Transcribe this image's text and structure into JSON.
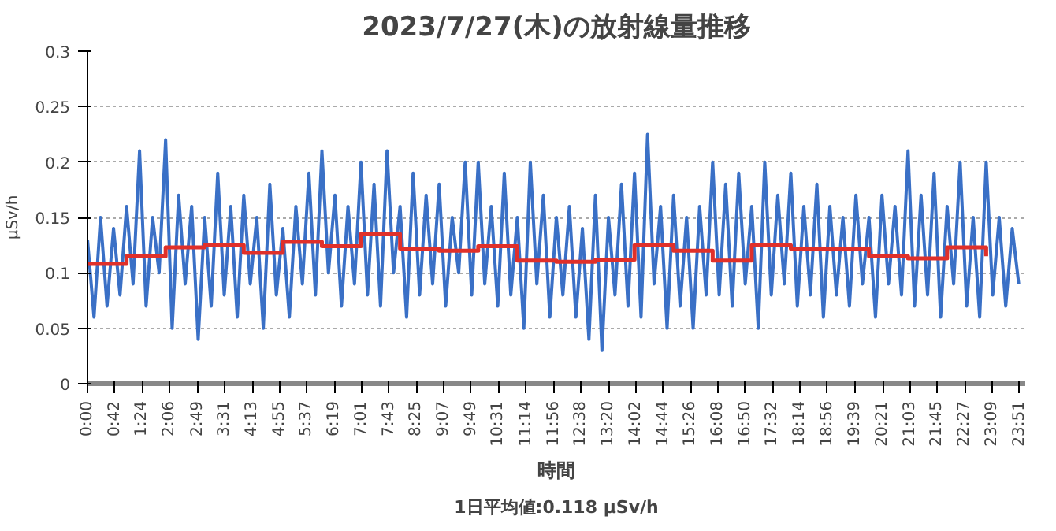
{
  "chart_data": {
    "type": "line",
    "title": "2023/7/27(木)の放射線量推移",
    "xlabel": "時間",
    "ylabel": "μSv/h",
    "annotations": [
      "1日平均値:0.118 μSv/h"
    ],
    "xlim": [
      0,
      24
    ],
    "ylim": [
      0,
      0.3
    ],
    "yticks": [
      0,
      0.05,
      {
        "value": 0.1,
        "label": "0.1"
      },
      0.15,
      {
        "value": 0.2,
        "label": "0.2"
      },
      0.25,
      {
        "value": 0.3,
        "label": "0.3"
      }
    ],
    "xticks": [
      {
        "value": 0,
        "label": "0:00"
      },
      {
        "value": 0.7,
        "label": "0:42"
      },
      {
        "value": 1.4,
        "label": "1:24"
      },
      {
        "value": 2.1,
        "label": "2:06"
      },
      {
        "value": 2.8167,
        "label": "2:49"
      },
      {
        "value": 3.5167,
        "label": "3:31"
      },
      {
        "value": 4.2167,
        "label": "4:13"
      },
      {
        "value": 4.9167,
        "label": "4:55"
      },
      {
        "value": 5.6167,
        "label": "5:37"
      },
      {
        "value": 6.3167,
        "label": "6:19"
      },
      {
        "value": 7.0167,
        "label": "7:01"
      },
      {
        "value": 7.7167,
        "label": "7:43"
      },
      {
        "value": 8.4167,
        "label": "8:25"
      },
      {
        "value": 9.1167,
        "label": "9:07"
      },
      {
        "value": 9.8167,
        "label": "9:49"
      },
      {
        "value": 10.5167,
        "label": "10:31"
      },
      {
        "value": 11.2333,
        "label": "11:14"
      },
      {
        "value": 11.9333,
        "label": "11:56"
      },
      {
        "value": 12.6333,
        "label": "12:38"
      },
      {
        "value": 13.3333,
        "label": "13:20"
      },
      {
        "value": 14.0333,
        "label": "14:02"
      },
      {
        "value": 14.7333,
        "label": "14:44"
      },
      {
        "value": 15.4333,
        "label": "15:26"
      },
      {
        "value": 16.1333,
        "label": "16:08"
      },
      {
        "value": 16.8333,
        "label": "16:50"
      },
      {
        "value": 17.5333,
        "label": "17:32"
      },
      {
        "value": 18.2333,
        "label": "18:14"
      },
      {
        "value": 18.9333,
        "label": "18:56"
      },
      {
        "value": 19.65,
        "label": "19:39"
      },
      {
        "value": 20.35,
        "label": "20:21"
      },
      {
        "value": 21.05,
        "label": "21:03"
      },
      {
        "value": 21.75,
        "label": "21:45"
      },
      {
        "value": 22.45,
        "label": "22:27"
      },
      {
        "value": 23.15,
        "label": "23:09"
      },
      {
        "value": 23.85,
        "label": "23:51"
      }
    ],
    "grid": "y",
    "series": [
      {
        "color": "#3a70c6",
        "x": [
          0,
          0.1667,
          0.3333,
          0.5,
          0.6667,
          0.8333,
          1,
          1.1667,
          1.3333,
          1.5,
          1.6667,
          1.8333,
          2,
          2.1667,
          2.3333,
          2.5,
          2.6667,
          2.8333,
          3,
          3.1667,
          3.3333,
          3.5,
          3.6667,
          3.8333,
          4,
          4.1667,
          4.3333,
          4.5,
          4.6667,
          4.8333,
          5,
          5.1667,
          5.3333,
          5.5,
          5.6667,
          5.8333,
          6,
          6.1667,
          6.3333,
          6.5,
          6.6667,
          6.8333,
          7,
          7.1667,
          7.3333,
          7.5,
          7.6667,
          7.8333,
          8,
          8.1667,
          8.3333,
          8.5,
          8.6667,
          8.8333,
          9,
          9.1667,
          9.3333,
          9.5,
          9.6667,
          9.8333,
          10,
          10.1667,
          10.3333,
          10.5,
          10.6667,
          10.8333,
          11,
          11.1667,
          11.3333,
          11.5,
          11.6667,
          11.8333,
          12,
          12.1667,
          12.3333,
          12.5,
          12.6667,
          12.8333,
          13,
          13.1667,
          13.3333,
          13.5,
          13.6667,
          13.8333,
          14,
          14.1667,
          14.3333,
          14.5,
          14.6667,
          14.8333,
          15,
          15.1667,
          15.3333,
          15.5,
          15.6667,
          15.8333,
          16,
          16.1667,
          16.3333,
          16.5,
          16.6667,
          16.8333,
          17,
          17.1667,
          17.3333,
          17.5,
          17.6667,
          17.8333,
          18,
          18.1667,
          18.3333,
          18.5,
          18.6667,
          18.8333,
          19,
          19.1667,
          19.3333,
          19.5,
          19.6667,
          19.8333,
          20,
          20.1667,
          20.3333,
          20.5,
          20.6667,
          20.8333,
          21,
          21.1667,
          21.3333,
          21.5,
          21.6667,
          21.8333,
          22,
          22.1667,
          22.3333,
          22.5,
          22.6667,
          22.8333,
          23,
          23.1667,
          23.3333,
          23.5,
          23.6667,
          23.8333
        ],
        "values": [
          0.13,
          0.06,
          0.15,
          0.07,
          0.14,
          0.08,
          0.16,
          0.09,
          0.21,
          0.07,
          0.15,
          0.1,
          0.22,
          0.05,
          0.17,
          0.09,
          0.16,
          0.04,
          0.15,
          0.07,
          0.19,
          0.08,
          0.16,
          0.06,
          0.17,
          0.09,
          0.15,
          0.05,
          0.18,
          0.08,
          0.14,
          0.06,
          0.16,
          0.09,
          0.19,
          0.08,
          0.21,
          0.1,
          0.17,
          0.07,
          0.16,
          0.09,
          0.2,
          0.08,
          0.18,
          0.07,
          0.21,
          0.1,
          0.16,
          0.06,
          0.19,
          0.08,
          0.17,
          0.09,
          0.18,
          0.07,
          0.15,
          0.1,
          0.2,
          0.08,
          0.2,
          0.09,
          0.16,
          0.07,
          0.19,
          0.08,
          0.15,
          0.05,
          0.2,
          0.09,
          0.17,
          0.06,
          0.15,
          0.08,
          0.16,
          0.06,
          0.14,
          0.04,
          0.17,
          0.03,
          0.15,
          0.08,
          0.18,
          0.07,
          0.19,
          0.06,
          0.225,
          0.09,
          0.16,
          0.05,
          0.17,
          0.07,
          0.15,
          0.05,
          0.16,
          0.08,
          0.2,
          0.08,
          0.18,
          0.07,
          0.19,
          0.09,
          0.16,
          0.05,
          0.2,
          0.08,
          0.17,
          0.09,
          0.19,
          0.07,
          0.16,
          0.08,
          0.18,
          0.06,
          0.16,
          0.08,
          0.15,
          0.07,
          0.17,
          0.09,
          0.15,
          0.06,
          0.17,
          0.09,
          0.16,
          0.08,
          0.21,
          0.07,
          0.17,
          0.08,
          0.19,
          0.06,
          0.16,
          0.09,
          0.2,
          0.07,
          0.15,
          0.06,
          0.2,
          0.08,
          0.15,
          0.07,
          0.14,
          0.09
        ]
      },
      {
        "type": "step",
        "color": "#e0302a",
        "x": [
          0,
          1,
          2,
          3,
          4,
          5,
          6,
          7,
          8,
          9,
          10,
          11,
          12,
          13,
          14,
          15,
          16,
          17,
          18,
          19,
          20,
          21,
          22,
          23
        ],
        "values": [
          0.108,
          0.115,
          0.123,
          0.125,
          0.118,
          0.128,
          0.124,
          0.135,
          0.122,
          0.12,
          0.124,
          0.111,
          0.11,
          0.112,
          0.125,
          0.12,
          0.111,
          0.125,
          0.122,
          0.122,
          0.115,
          0.113,
          0.123,
          0.115
        ]
      }
    ]
  }
}
